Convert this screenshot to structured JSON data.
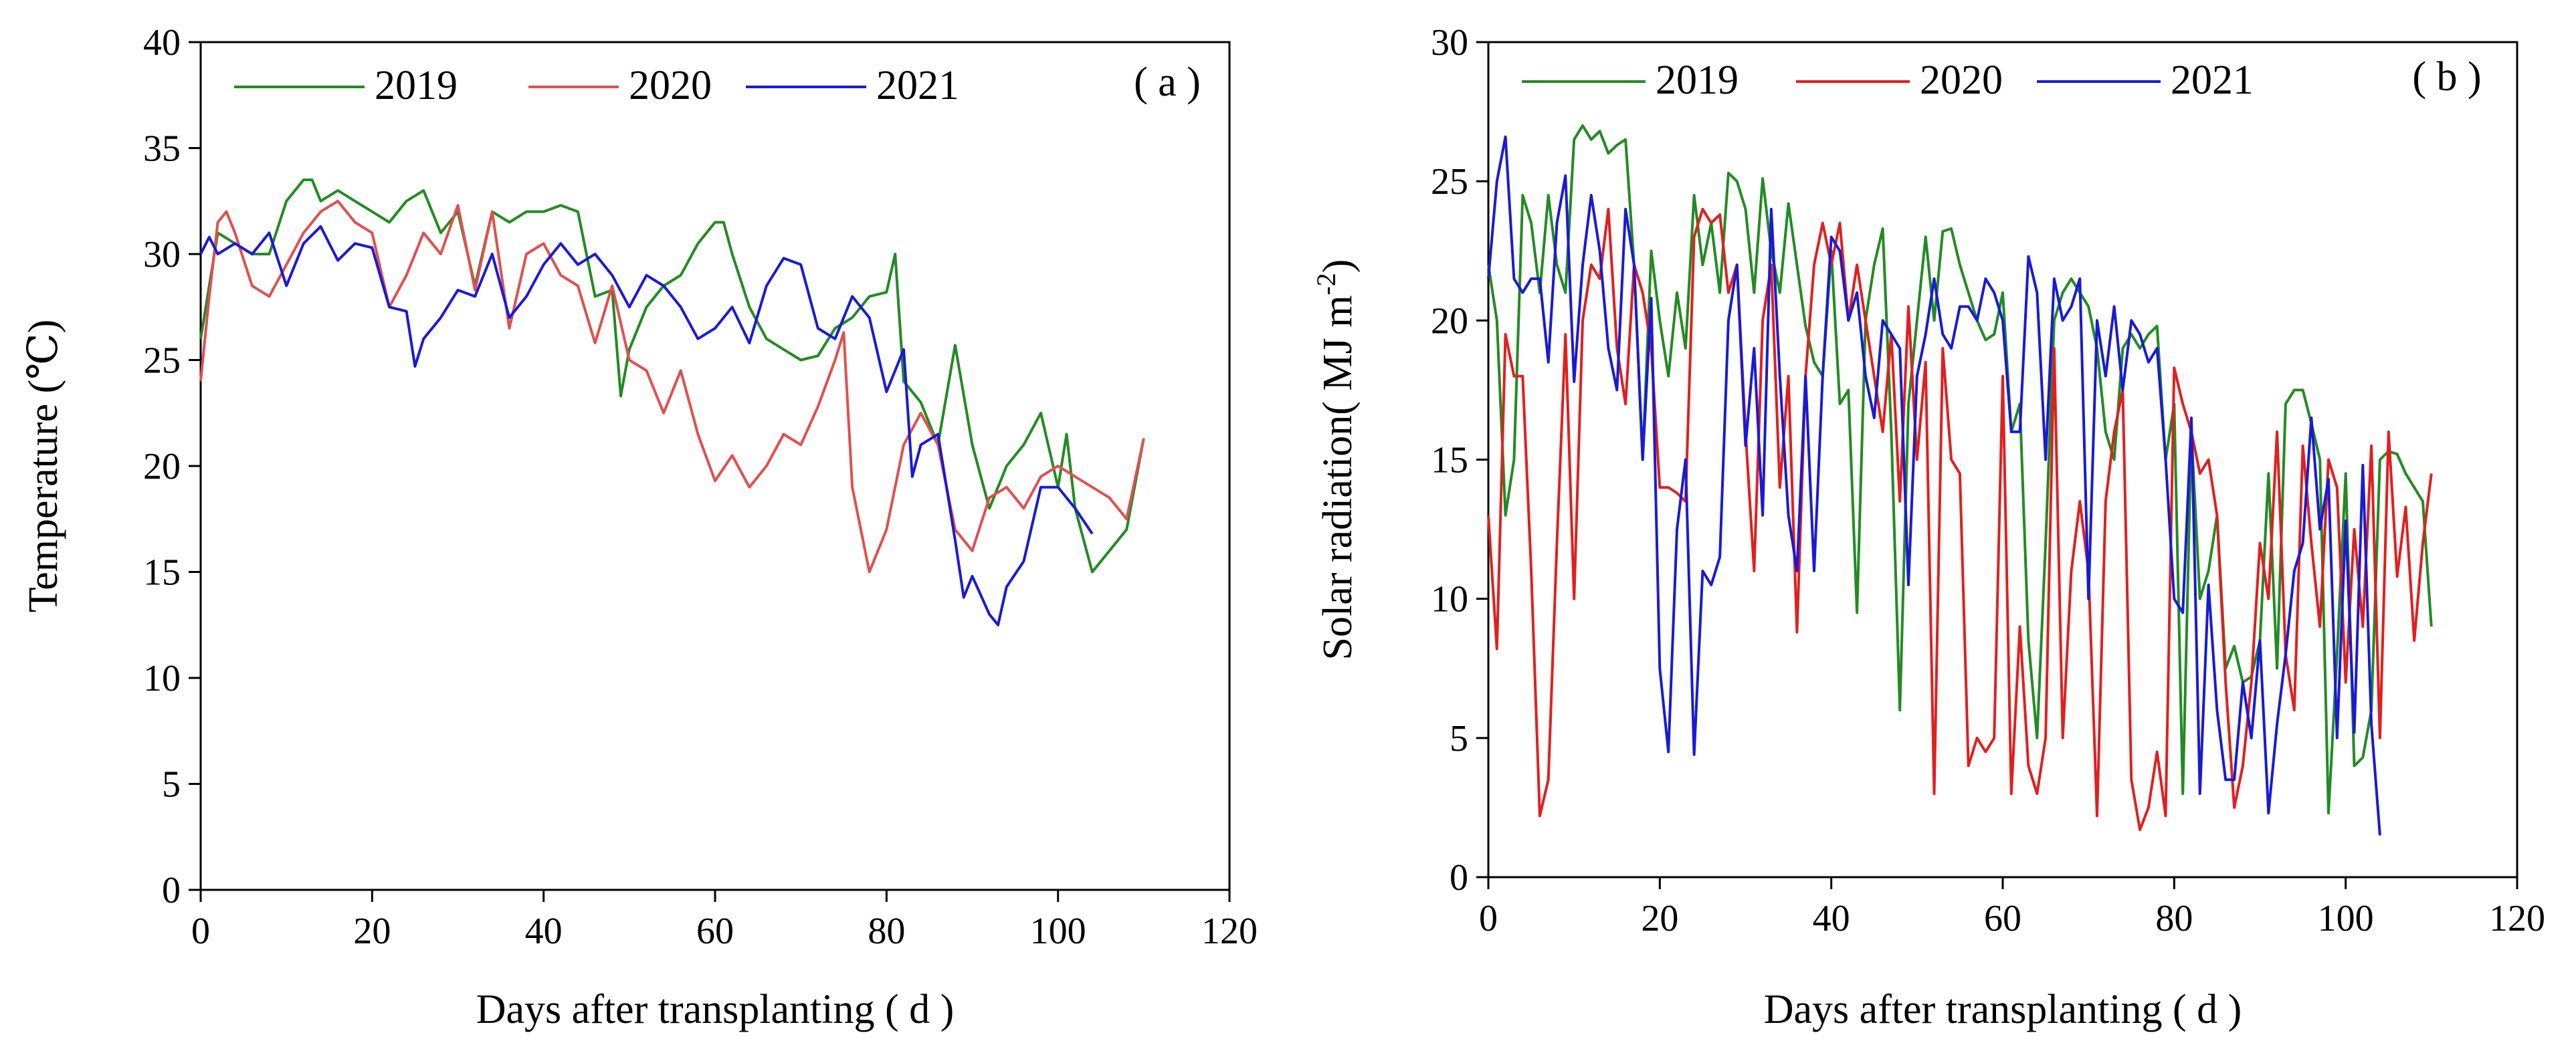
{
  "chart_data": [
    {
      "type": "line",
      "panel_label": "( a )",
      "xlabel": "Days after transplanting ( d )",
      "ylabel": "Temperature (℃)",
      "xlim": [
        0,
        120
      ],
      "ylim": [
        0,
        40
      ],
      "xticks": [
        0,
        20,
        40,
        60,
        80,
        100,
        120
      ],
      "yticks": [
        0,
        5,
        10,
        15,
        20,
        25,
        30,
        35,
        40
      ],
      "grid": false,
      "legend": "top-left",
      "series": [
        {
          "name": "2019",
          "color": "#238b23",
          "x": [
            0,
            2,
            4,
            6,
            8,
            10,
            12,
            13,
            14,
            16,
            18,
            20,
            22,
            24,
            26,
            28,
            30,
            32,
            34,
            36,
            38,
            40,
            42,
            44,
            46,
            48,
            49,
            50,
            52,
            54,
            56,
            58,
            60,
            61,
            62,
            64,
            66,
            68,
            70,
            72,
            74,
            76,
            78,
            80,
            81,
            82,
            84,
            86,
            88,
            90,
            92,
            94,
            96,
            98,
            100,
            101,
            102,
            103,
            104,
            106,
            108,
            110
          ],
          "y": [
            26,
            31,
            30.5,
            30,
            30,
            32.5,
            33.5,
            33.5,
            32.5,
            33,
            32.5,
            32,
            31.5,
            32.5,
            33,
            31,
            32,
            28.5,
            32,
            31.5,
            32,
            32,
            32.3,
            32,
            28,
            28.3,
            23.3,
            25.5,
            27.5,
            28.5,
            29,
            30.5,
            31.5,
            31.5,
            30,
            27.5,
            26,
            25.5,
            25,
            25.2,
            26.5,
            27,
            28,
            28.2,
            30,
            24,
            23,
            21,
            25.7,
            21,
            18,
            20,
            21,
            22.5,
            19,
            21.5,
            18,
            16.5,
            15,
            16,
            17,
            21.3
          ]
        },
        {
          "name": "2020",
          "color": "#e05050",
          "x": [
            0,
            1,
            2,
            3,
            4,
            6,
            8,
            10,
            12,
            14,
            16,
            18,
            20,
            22,
            24,
            26,
            28,
            30,
            32,
            34,
            36,
            38,
            40,
            42,
            44,
            46,
            48,
            50,
            52,
            54,
            56,
            58,
            60,
            62,
            64,
            66,
            68,
            70,
            72,
            74,
            75,
            76,
            77,
            78,
            80,
            82,
            84,
            86,
            88,
            90,
            92,
            94,
            96,
            98,
            100,
            102,
            104,
            106,
            108,
            110
          ],
          "y": [
            24,
            28,
            31.5,
            32,
            31,
            28.5,
            28,
            29.5,
            31,
            32,
            32.5,
            31.5,
            31,
            27.5,
            29,
            31,
            30,
            32.3,
            28.3,
            32,
            26.5,
            30,
            30.5,
            29,
            28.5,
            25.8,
            28.5,
            25,
            24.5,
            22.5,
            24.5,
            21.5,
            19.3,
            20.5,
            19,
            20,
            21.5,
            21,
            22.8,
            25,
            26.3,
            19,
            17,
            15,
            17,
            21,
            22.5,
            21,
            17,
            16,
            18.5,
            19,
            18,
            19.5,
            20,
            19.5,
            19,
            18.5,
            17.5,
            21.3
          ]
        },
        {
          "name": "2021",
          "color": "#1a1ad6",
          "x": [
            0,
            1,
            2,
            4,
            6,
            8,
            10,
            12,
            14,
            16,
            18,
            20,
            22,
            24,
            25,
            26,
            28,
            30,
            32,
            34,
            36,
            38,
            40,
            42,
            44,
            46,
            48,
            50,
            52,
            54,
            56,
            58,
            60,
            62,
            64,
            66,
            68,
            70,
            72,
            74,
            76,
            78,
            80,
            82,
            83,
            84,
            86,
            88,
            89,
            90,
            92,
            93,
            94,
            96,
            98,
            100,
            102,
            104
          ],
          "y": [
            30,
            30.8,
            30,
            30.5,
            30,
            31,
            28.5,
            30.5,
            31.3,
            29.7,
            30.5,
            30.3,
            27.5,
            27.3,
            24.7,
            26,
            27,
            28.3,
            28,
            30,
            27,
            28,
            29.5,
            30.5,
            29.5,
            30,
            29,
            27.5,
            29,
            28.5,
            27.5,
            26,
            26.5,
            27.5,
            25.8,
            28.5,
            29.8,
            29.5,
            26.5,
            26,
            28,
            27,
            23.5,
            25.5,
            19.5,
            21,
            21.5,
            16.5,
            13.8,
            14.8,
            13,
            12.5,
            14.3,
            15.5,
            19,
            19,
            18,
            16.8
          ]
        }
      ]
    },
    {
      "type": "line",
      "panel_label": "( b )",
      "xlabel": "Days after transplanting ( d )",
      "ylabel_main": "Solar radiation( MJ m",
      "ylabel_sup": "-2",
      "ylabel_end": ")",
      "xlim": [
        0,
        120
      ],
      "ylim": [
        0,
        30
      ],
      "xticks": [
        0,
        20,
        40,
        60,
        80,
        100,
        120
      ],
      "yticks": [
        0,
        5,
        10,
        15,
        20,
        25,
        30
      ],
      "grid": false,
      "legend": "top-left",
      "series": [
        {
          "name": "2019",
          "color": "#238b23",
          "x": [
            0,
            1,
            2,
            3,
            4,
            5,
            6,
            7,
            8,
            9,
            10,
            11,
            12,
            13,
            14,
            15,
            16,
            17,
            18,
            19,
            20,
            21,
            22,
            23,
            24,
            25,
            26,
            27,
            28,
            29,
            30,
            31,
            32,
            33,
            34,
            35,
            36,
            37,
            38,
            39,
            40,
            41,
            42,
            43,
            44,
            45,
            46,
            47,
            48,
            49,
            50,
            51,
            52,
            53,
            54,
            55,
            56,
            57,
            58,
            59,
            60,
            61,
            62,
            63,
            64,
            65,
            66,
            67,
            68,
            69,
            70,
            71,
            72,
            73,
            74,
            75,
            76,
            77,
            78,
            79,
            80,
            81,
            82,
            83,
            84,
            85,
            86,
            87,
            88,
            89,
            90,
            91,
            92,
            93,
            94,
            95,
            96,
            97,
            98,
            99,
            100,
            101,
            102,
            103,
            104,
            105,
            106,
            107,
            108,
            109,
            110
          ],
          "y": [
            22,
            20,
            13,
            15,
            24.5,
            23.5,
            21,
            24.5,
            22,
            21,
            26.5,
            27,
            26.5,
            26.8,
            26,
            26.3,
            26.5,
            22,
            15,
            22.5,
            20,
            18,
            21,
            19,
            24.5,
            22,
            23.5,
            21,
            25.3,
            25,
            24,
            21,
            25.1,
            22.5,
            21,
            24.2,
            22,
            19.8,
            18.5,
            18,
            22.5,
            17,
            17.5,
            9.5,
            20,
            22,
            23.3,
            16,
            6,
            17,
            20,
            23,
            20,
            23.2,
            23.3,
            22,
            21,
            20,
            19.3,
            19.5,
            21,
            16,
            17,
            8.5,
            5,
            12,
            20,
            21,
            21.5,
            21,
            20.5,
            19,
            16,
            15,
            19,
            19.5,
            19,
            19.5,
            19.8,
            15,
            17,
            3,
            16,
            10,
            11,
            13,
            7.5,
            8.3,
            7,
            7.2,
            8.5,
            14.5,
            7.5,
            17,
            17.5,
            17.5,
            16.3,
            15,
            2.3,
            8,
            14.5,
            4,
            4.3,
            6,
            15,
            15.3,
            15.2,
            14.5,
            14,
            13.5,
            9
          ]
        },
        {
          "name": "2020",
          "color": "#e02020",
          "x": [
            0,
            1,
            2,
            3,
            4,
            5,
            6,
            7,
            8,
            9,
            10,
            11,
            12,
            13,
            14,
            15,
            16,
            17,
            18,
            19,
            20,
            21,
            22,
            23,
            24,
            25,
            26,
            27,
            28,
            29,
            30,
            31,
            32,
            33,
            34,
            35,
            36,
            37,
            38,
            39,
            40,
            41,
            42,
            43,
            44,
            45,
            46,
            47,
            48,
            49,
            50,
            51,
            52,
            53,
            54,
            55,
            56,
            57,
            58,
            59,
            60,
            61,
            62,
            63,
            64,
            65,
            66,
            67,
            68,
            69,
            70,
            71,
            72,
            73,
            74,
            75,
            76,
            77,
            78,
            79,
            80,
            81,
            82,
            83,
            84,
            85,
            86,
            87,
            88,
            89,
            90,
            91,
            92,
            93,
            94,
            95,
            96,
            97,
            98,
            99,
            100,
            101,
            102,
            103,
            104,
            105,
            106,
            107,
            108,
            109,
            110
          ],
          "y": [
            13,
            8.2,
            19.5,
            18,
            18,
            11,
            2.2,
            3.5,
            12,
            19.5,
            10,
            20,
            22,
            21.5,
            24,
            19,
            17,
            22,
            21,
            19,
            14,
            14,
            13.8,
            13.5,
            23,
            24,
            23.5,
            23.8,
            21,
            22,
            16,
            11,
            20,
            22,
            14,
            18,
            8.8,
            18,
            22,
            23.5,
            22,
            23.5,
            20,
            22,
            20,
            18,
            16,
            19.5,
            13.5,
            20.5,
            15,
            18.5,
            3,
            19,
            15,
            14.5,
            4,
            5,
            4.5,
            5,
            18,
            3,
            9,
            4,
            3,
            5,
            19,
            5,
            11,
            13.5,
            11,
            2.2,
            13.5,
            16,
            17.5,
            3.5,
            1.7,
            2.5,
            4.5,
            2.2,
            18.3,
            17,
            16,
            14.5,
            15,
            13,
            7,
            2.5,
            4,
            7,
            12,
            10,
            16,
            8,
            6,
            15.5,
            12,
            9,
            15,
            14,
            7,
            12.5,
            9,
            15.5,
            5,
            16,
            10.8,
            13.3,
            8.5,
            12,
            14.5
          ]
        },
        {
          "name": "2021",
          "color": "#1a1ad6",
          "x": [
            0,
            1,
            2,
            3,
            4,
            5,
            6,
            7,
            8,
            9,
            10,
            11,
            12,
            13,
            14,
            15,
            16,
            17,
            18,
            19,
            20,
            21,
            22,
            23,
            24,
            25,
            26,
            27,
            28,
            29,
            30,
            31,
            32,
            33,
            34,
            35,
            36,
            37,
            38,
            39,
            40,
            41,
            42,
            43,
            44,
            45,
            46,
            47,
            48,
            49,
            50,
            51,
            52,
            53,
            54,
            55,
            56,
            57,
            58,
            59,
            60,
            61,
            62,
            63,
            64,
            65,
            66,
            67,
            68,
            69,
            70,
            71,
            72,
            73,
            74,
            75,
            76,
            77,
            78,
            79,
            80,
            81,
            82,
            83,
            84,
            85,
            86,
            87,
            88,
            89,
            90,
            91,
            92,
            93,
            94,
            95,
            96,
            97,
            98,
            99,
            100,
            101,
            102,
            103,
            104
          ],
          "y": [
            21.5,
            25,
            26.6,
            21.5,
            21,
            21.5,
            21.5,
            18.5,
            23.5,
            25.2,
            17.8,
            22,
            24.5,
            22.5,
            19,
            17.5,
            24,
            22,
            15,
            20.8,
            7.5,
            4.5,
            12.5,
            15,
            4.4,
            11,
            10.5,
            11.5,
            20,
            22,
            15.5,
            19,
            13,
            24,
            18,
            13,
            11,
            18,
            11,
            18,
            23,
            22.5,
            20,
            21,
            18,
            16.5,
            20,
            19.5,
            19,
            10.5,
            18,
            19.5,
            21.5,
            19.5,
            19,
            20.5,
            20.5,
            20,
            21.5,
            21,
            20,
            16,
            16,
            22.3,
            21,
            15,
            21.5,
            20,
            20.5,
            21.5,
            10,
            20,
            18,
            20.5,
            17.5,
            20,
            19.5,
            18.5,
            19,
            15,
            10,
            9.5,
            16.5,
            3,
            10.5,
            6,
            3.5,
            3.5,
            7,
            5,
            8.5,
            2.3,
            5.5,
            8,
            11,
            12,
            16.5,
            12.5,
            14.3,
            5,
            12.8,
            5.2,
            14.8,
            5.5,
            1.5
          ]
        }
      ]
    }
  ]
}
